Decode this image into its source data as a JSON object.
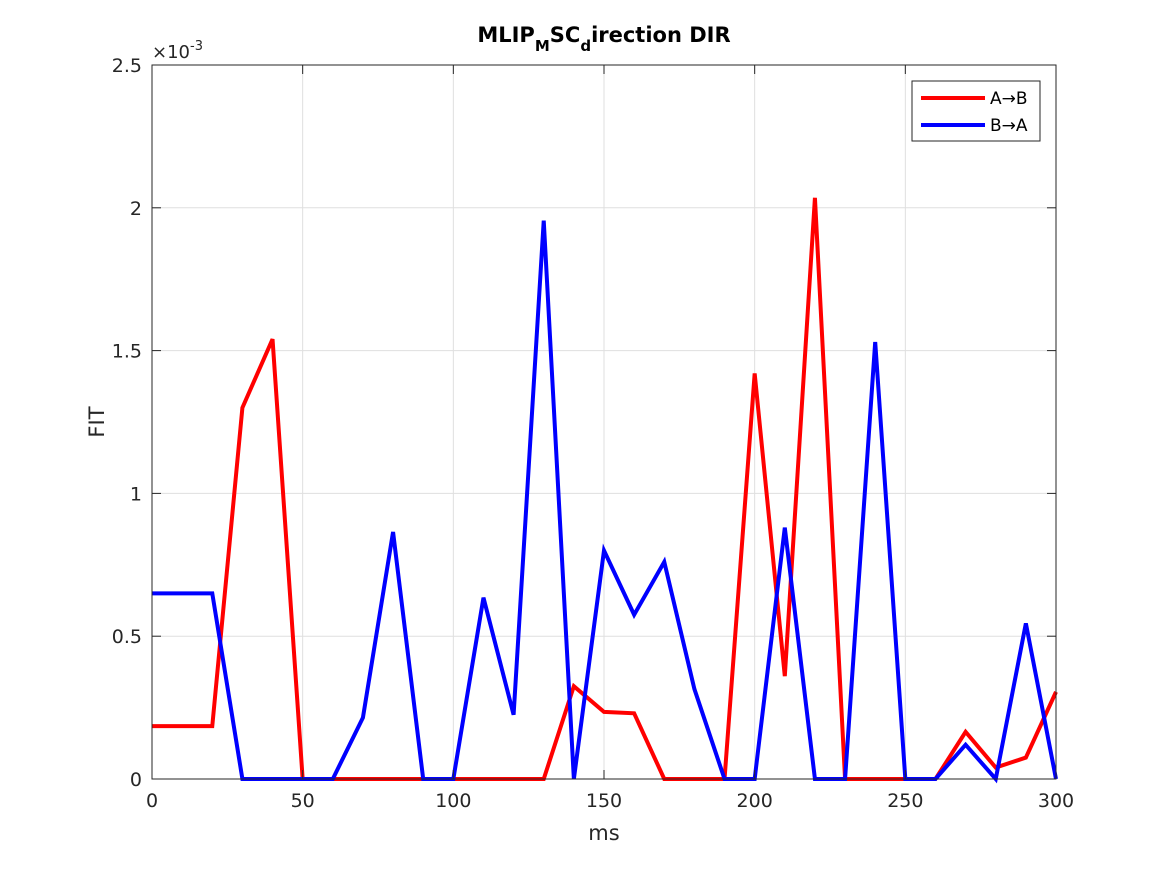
{
  "chart_data": {
    "type": "line",
    "title_parts": {
      "a": "MLIP",
      "b": "M",
      "c": "SC",
      "d": "d",
      "e": "irection DIR"
    },
    "xlabel": "ms",
    "ylabel": "FIT",
    "xlim": [
      0,
      300
    ],
    "ylim": [
      0,
      0.0025
    ],
    "xticks": [
      0,
      50,
      100,
      150,
      200,
      250,
      300
    ],
    "xtick_labels": [
      "0",
      "50",
      "100",
      "150",
      "200",
      "250",
      "300"
    ],
    "yticks": [
      0,
      0.0005,
      0.001,
      0.0015,
      0.002,
      0.0025
    ],
    "ytick_labels": [
      "0",
      "0.5",
      "1",
      "1.5",
      "2",
      "2.5"
    ],
    "y_exponent": {
      "base": "×10",
      "power": "-3"
    },
    "grid": true,
    "legend_position": "top-right",
    "x": [
      0,
      10,
      20,
      30,
      40,
      50,
      60,
      70,
      80,
      90,
      100,
      110,
      120,
      130,
      140,
      150,
      160,
      170,
      180,
      190,
      200,
      210,
      220,
      230,
      240,
      250,
      260,
      270,
      280,
      290,
      300
    ],
    "series": [
      {
        "name": "A→B",
        "color": "#ff0000",
        "values": [
          0.000185,
          0.000185,
          0.000185,
          0.0013,
          0.00154,
          0,
          0,
          0,
          0,
          0,
          0,
          0,
          0,
          0,
          0.000325,
          0.000235,
          0.00023,
          0,
          0,
          0,
          0.00142,
          0.00036,
          0.002035,
          0,
          0,
          0,
          0,
          0.000165,
          4e-05,
          7.5e-05,
          0.000305
        ]
      },
      {
        "name": "B→A",
        "color": "#0000ff",
        "values": [
          0.00065,
          0.00065,
          0.00065,
          0,
          0,
          0,
          0,
          0.000215,
          0.000865,
          0,
          0,
          0.000635,
          0.000225,
          0.001955,
          0,
          0.0008,
          0.000575,
          0.00076,
          0.000315,
          0,
          0,
          0.00088,
          0,
          0,
          0.00153,
          0,
          0,
          0.00012,
          0,
          0.000545,
          0
        ]
      }
    ]
  }
}
